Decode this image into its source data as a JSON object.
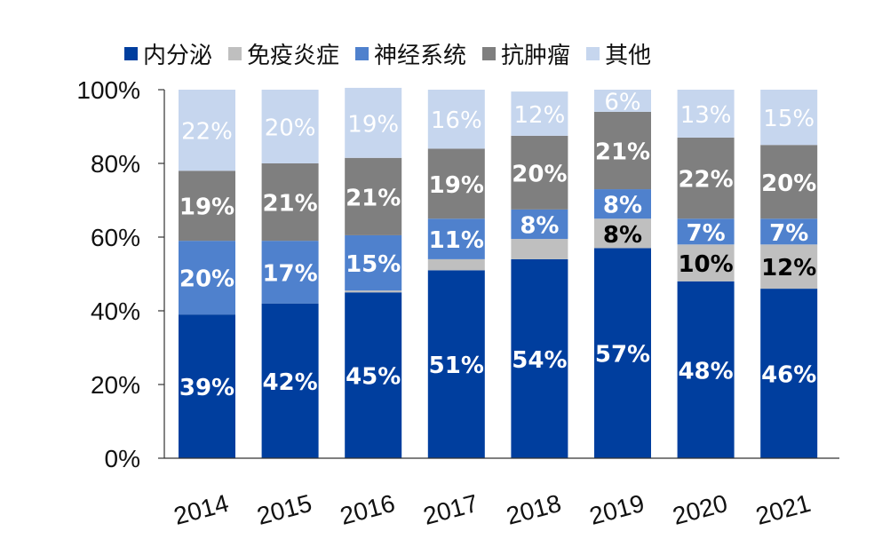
{
  "chart_data": {
    "type": "bar",
    "stacked": true,
    "percent": true,
    "categories": [
      "2014",
      "2015",
      "2016",
      "2017",
      "2018",
      "2019",
      "2020",
      "2021"
    ],
    "series": [
      {
        "name": "内分泌",
        "color": "#003E9E",
        "label_color": "#ffffff",
        "values": [
          39,
          42,
          45,
          51,
          54,
          57,
          48,
          46
        ],
        "labels": [
          "39%",
          "42%",
          "45%",
          "51%",
          "54%",
          "57%",
          "48%",
          "46%"
        ]
      },
      {
        "name": "免疫炎症",
        "color": "#BFBFBF",
        "label_color": "#000000",
        "values": [
          0,
          0,
          0.5,
          3,
          5.5,
          8,
          10,
          12
        ],
        "labels": [
          "",
          "",
          "",
          "",
          "",
          "8%",
          "10%",
          "12%"
        ]
      },
      {
        "name": "神经系统",
        "color": "#4F81CD",
        "label_color": "#ffffff",
        "values": [
          20,
          17,
          15,
          11,
          8,
          8,
          7,
          7
        ],
        "labels": [
          "20%",
          "17%",
          "15%",
          "11%",
          "8%",
          "8%",
          "7%",
          "7%"
        ]
      },
      {
        "name": "抗肿瘤",
        "color": "#7F7F7F",
        "label_color": "#ffffff",
        "values": [
          19,
          21,
          21,
          19,
          20,
          21,
          22,
          20
        ],
        "labels": [
          "19%",
          "21%",
          "21%",
          "19%",
          "20%",
          "21%",
          "22%",
          "20%"
        ]
      },
      {
        "name": "其他",
        "color": "#C6D6EE",
        "label_color": "#ffffff",
        "values": [
          22,
          20,
          19,
          16,
          12,
          6,
          13,
          15
        ],
        "labels": [
          "22%",
          "20%",
          "19%",
          "16%",
          "12%",
          "6%",
          "13%",
          "15%"
        ]
      }
    ],
    "yticks": [
      "0%",
      "20%",
      "40%",
      "60%",
      "80%",
      "100%"
    ],
    "ylim": [
      0,
      100
    ],
    "legend_position": "top",
    "grid": false
  }
}
